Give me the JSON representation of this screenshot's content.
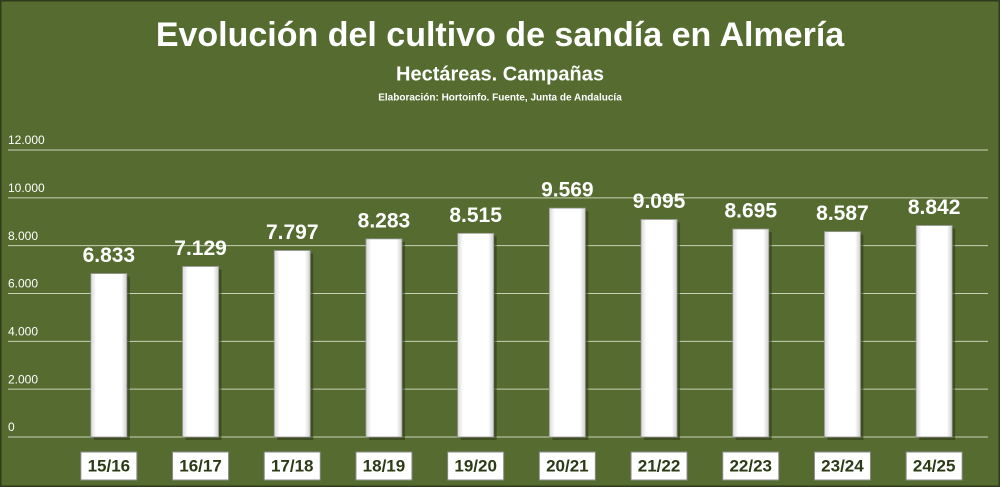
{
  "chart_data": {
    "type": "bar",
    "title": "Evolución del cultivo de sandía en Almería",
    "subtitle": "Hectáreas. Campañas",
    "source": "Elaboración: Hortoinfo. Fuente, Junta de Andalucía",
    "categories": [
      "15/16",
      "16/17",
      "17/18",
      "18/19",
      "19/20",
      "20/21",
      "21/22",
      "22/23",
      "23/24",
      "24/25"
    ],
    "values": [
      6833,
      7129,
      7797,
      8283,
      8515,
      9569,
      9095,
      8695,
      8587,
      8842
    ],
    "value_labels": [
      "6.833",
      "7.129",
      "7.797",
      "8.283",
      "8.515",
      "9.569",
      "9.095",
      "8.695",
      "8.587",
      "8.842"
    ],
    "color": "#ffffff",
    "ylim": [
      0,
      12000
    ],
    "yticks": [
      0,
      {
        "value": 2000,
        "label": "2.000"
      },
      {
        "value": 4000,
        "label": "4.000"
      },
      {
        "value": 6000,
        "label": "6.000"
      },
      {
        "value": 8000,
        "label": "8.000"
      },
      {
        "value": 10000,
        "label": "10.000"
      },
      {
        "value": 12000,
        "label": "12.000"
      }
    ],
    "grid": true
  }
}
